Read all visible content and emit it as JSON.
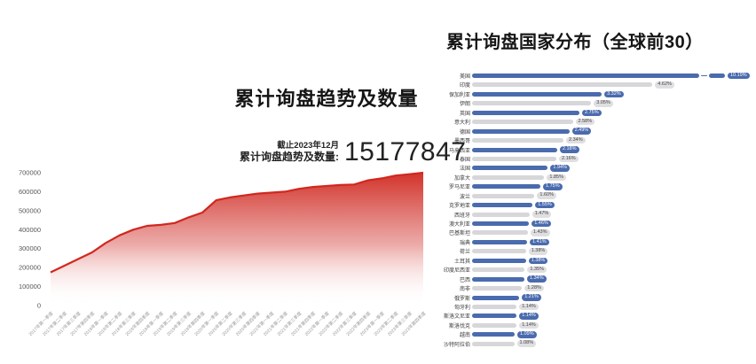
{
  "page": {
    "background": "#ffffff"
  },
  "left_chart": {
    "title": "累计询盘趋势及数量",
    "asof_label": "截止2023年12月",
    "stat_label": "累计询盘趋势及数量:",
    "stat_value": "15177847"
  },
  "right_chart": {
    "title": "累计询盘国家分布（全球前30）"
  },
  "colors": {
    "trend_line": "#d0281f",
    "bar_blue": "#4a6bae",
    "bar_gray": "#d7d7da",
    "pill_gray_bg": "#dfdfe1",
    "pill_gray_text": "#444444",
    "pill_blue_text": "#ffffff",
    "axis_text": "#555555",
    "x_label_text": "#999999"
  },
  "chart_data": [
    {
      "type": "area",
      "title": "累计询盘趋势及数量",
      "xlabel": "",
      "ylabel": "",
      "ylim": [
        0,
        700000
      ],
      "yticks": [
        0,
        100000,
        200000,
        300000,
        400000,
        500000,
        600000,
        700000
      ],
      "grid": false,
      "legend": "none",
      "line_color": "#d0281f",
      "fill": "red gradient fading to white at bottom",
      "x": [
        "2017年第一季度",
        "2017年第二季度",
        "2017年第三季度",
        "2017年第四季度",
        "2018年第一季度",
        "2018年第二季度",
        "2018年第三季度",
        "2018年第四季度",
        "2019年第一季度",
        "2019年第二季度",
        "2019年第三季度",
        "2019年第四季度",
        "2020年第一季度",
        "2020年第二季度",
        "2020年第三季度",
        "2020年第四季度",
        "2021年第一季度",
        "2021年第二季度",
        "2021年第三季度",
        "2021年第四季度",
        "2022年第一季度",
        "2022年第二季度",
        "2022年第三季度",
        "2022年第四季度",
        "2023年第一季度",
        "2023年第二季度",
        "2023年第三季度",
        "2023年第四季度"
      ],
      "values": [
        175000,
        210000,
        245000,
        280000,
        330000,
        370000,
        400000,
        420000,
        425000,
        435000,
        465000,
        490000,
        555000,
        570000,
        580000,
        590000,
        595000,
        600000,
        615000,
        625000,
        630000,
        635000,
        638000,
        660000,
        670000,
        685000,
        692000,
        700000
      ],
      "annotation": {
        "asof": "截止2023年12月",
        "label": "累计询盘趋势及数量:",
        "value": "15177847"
      }
    },
    {
      "type": "bar",
      "orientation": "horizontal",
      "title": "累计询盘国家分布（全球前30）",
      "unit": "%",
      "legend": "none",
      "grid": false,
      "axis_break_on_first_bar": true,
      "bar_colors_alternate": [
        "#4a6bae",
        "#d7d7da"
      ],
      "categories": [
        "美国",
        "印度",
        "保加利亚",
        "伊朗",
        "英国",
        "意大利",
        "德国",
        "墨西哥",
        "马来西亚",
        "泰国",
        "法国",
        "加拿大",
        "罗马尼亚",
        "波兰",
        "克罗地亚",
        "西班牙",
        "澳大利亚",
        "巴基斯坦",
        "瑞典",
        "荷兰",
        "土耳其",
        "印度尼西亚",
        "巴西",
        "南非",
        "俄罗斯",
        "匈牙利",
        "斯洛文尼亚",
        "斯洛伐克",
        "越南",
        "沙特阿拉伯"
      ],
      "values": [
        10.19,
        4.62,
        3.32,
        3.05,
        2.75,
        2.58,
        2.49,
        2.34,
        2.18,
        2.16,
        1.94,
        1.85,
        1.75,
        1.6,
        1.55,
        1.47,
        1.46,
        1.43,
        1.41,
        1.38,
        1.38,
        1.35,
        1.34,
        1.28,
        1.21,
        1.14,
        1.14,
        1.14,
        1.09,
        1.08
      ],
      "value_labels": [
        "10.19%",
        "4.62%",
        "3.32%",
        "3.05%",
        "2.75%",
        "2.58%",
        "2.49%",
        "2.34%",
        "2.18%",
        "2.16%",
        "1.94%",
        "1.85%",
        "1.75%",
        "1.60%",
        "1.55%",
        "1.47%",
        "1.46%",
        "1.43%",
        "1.41%",
        "1.38%",
        "1.38%",
        "1.35%",
        "1.34%",
        "1.28%",
        "1.21%",
        "1.14%",
        "1.14%",
        "1.14%",
        "1.09%",
        "1.08%"
      ]
    }
  ]
}
